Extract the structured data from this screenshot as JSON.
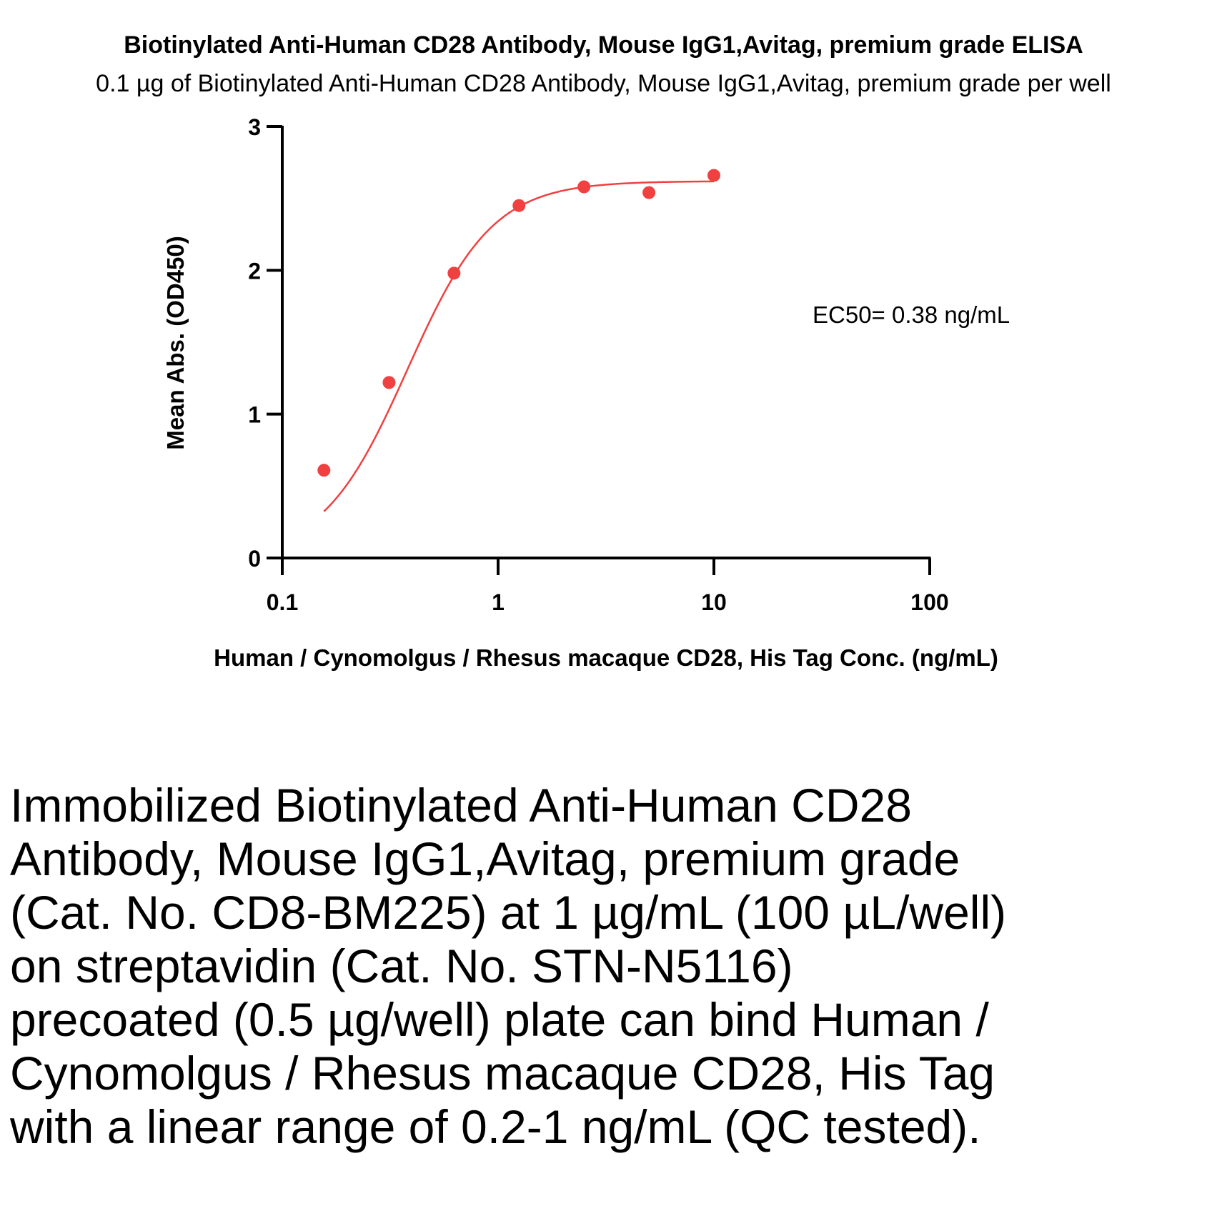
{
  "chart_data": {
    "type": "scatter",
    "title": "Biotinylated Anti-Human CD28 Antibody, Mouse IgG1,Avitag, premium grade ELISA",
    "subtitle": "0.1 µg of Biotinylated Anti-Human CD28 Antibody, Mouse IgG1,Avitag, premium grade per well",
    "xlabel": "Human / Cynomolgus / Rhesus macaque CD28, His Tag Conc. (ng/mL)",
    "ylabel": "Mean Abs. (OD450)",
    "xscale": "log",
    "xlim": [
      0.1,
      100
    ],
    "ylim": [
      0,
      3
    ],
    "xticks": [
      0.1,
      1,
      10,
      100
    ],
    "xtick_labels": [
      "0.1",
      "1",
      "10",
      "100"
    ],
    "yticks": [
      0,
      1,
      2,
      3
    ],
    "ytick_labels": [
      "0",
      "1",
      "2",
      "3"
    ],
    "grid": false,
    "color": "#f04040",
    "series": [
      {
        "x": [
          0.156,
          0.3125,
          0.625,
          1.25,
          2.5,
          5,
          10
        ],
        "y": [
          0.61,
          1.22,
          1.98,
          2.45,
          2.58,
          2.54,
          2.66
        ]
      }
    ],
    "fit": {
      "type": "4PL",
      "bottom": 0.0,
      "top": 2.62,
      "ec50": 0.38,
      "hill": 2.2
    },
    "annotation": "EC50= 0.38 ng/mL"
  },
  "caption": "Immobilized Biotinylated Anti-Human CD28 Antibody, Mouse IgG1,Avitag, premium grade (Cat. No. CD8-BM225) at 1 µg/mL (100 µL/well) on streptavidin (Cat. No. STN-N5116) precoated (0.5 µg/well) plate can bind Human / Cynomolgus / Rhesus macaque CD28, His Tag with a linear range of 0.2-1 ng/mL (QC tested)."
}
